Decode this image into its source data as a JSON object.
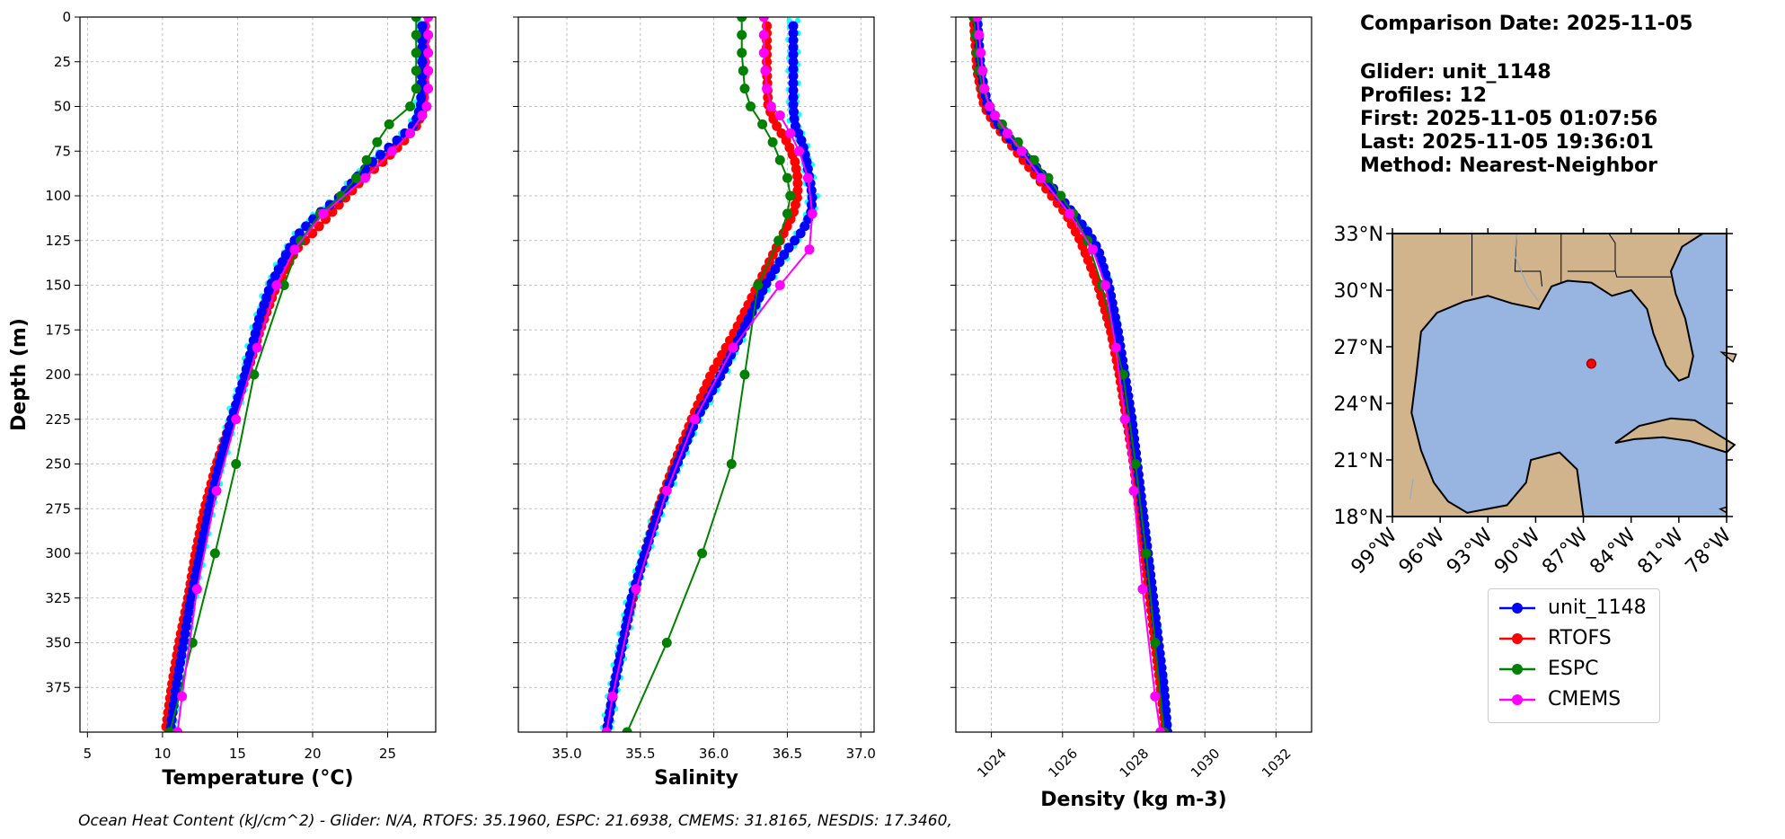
{
  "colors": {
    "unit_1148": "#0000ff",
    "unit_1148_points": "#00ffff",
    "RTOFS": "#ff0000",
    "ESPC": "#008000",
    "CMEMS": "#ff00ff",
    "land": "#d2b48c",
    "ocean": "#98b4e0",
    "grid": "#b0b0b0"
  },
  "info": {
    "comparison_date": "Comparison Date: 2025-11-05",
    "glider": "Glider: unit_1148",
    "profiles": "Profiles: 12",
    "first": "First: 2025-11-05 01:07:56",
    "last": "Last: 2025-11-05 19:36:01",
    "method": "Method: Nearest-Neighbor"
  },
  "legend": [
    {
      "name": "unit_1148",
      "color_key": "unit_1148"
    },
    {
      "name": "RTOFS",
      "color_key": "RTOFS"
    },
    {
      "name": "ESPC",
      "color_key": "ESPC"
    },
    {
      "name": "CMEMS",
      "color_key": "CMEMS"
    }
  ],
  "footer": "Ocean Heat Content (kJ/cm^2) - Glider: N/A,  RTOFS: 35.1960,  ESPC: 21.6938,  CMEMS: 31.8165,  NESDIS: 17.3460,",
  "map": {
    "lat_labels": [
      "33°N",
      "30°N",
      "27°N",
      "24°N",
      "21°N",
      "18°N"
    ],
    "lon_labels": [
      "99°W",
      "96°W",
      "93°W",
      "90°W",
      "87°W",
      "84°W",
      "81°W",
      "78°W"
    ],
    "lat_range": [
      18,
      33
    ],
    "lon_range": [
      -99,
      -78
    ],
    "glider_position": {
      "lon": -86.5,
      "lat": 26.1
    }
  },
  "chart_data": [
    {
      "type": "line",
      "title": "",
      "xlabel": "Temperature (°C)",
      "ylabel": "Depth (m)",
      "xlim": [
        4.5,
        28.2
      ],
      "ylim": [
        400,
        0
      ],
      "xticks": [
        5,
        10,
        15,
        20,
        25
      ],
      "yticks": [
        0,
        25,
        50,
        75,
        100,
        125,
        150,
        175,
        200,
        225,
        250,
        275,
        300,
        325,
        350,
        375
      ],
      "grid": true,
      "series": [
        {
          "name": "unit_1148",
          "depth": [
            5,
            30,
            50,
            60,
            70,
            80,
            90,
            100,
            110,
            120,
            130,
            140,
            150,
            170,
            190,
            200,
            225,
            250,
            275,
            300,
            325,
            350,
            375,
            400
          ],
          "values": [
            27.3,
            27.3,
            27.2,
            26.8,
            25.5,
            24.1,
            22.9,
            21.9,
            20.4,
            19.2,
            18.4,
            17.8,
            17.2,
            16.4,
            15.8,
            15.5,
            14.6,
            13.8,
            13.1,
            12.5,
            11.9,
            11.4,
            10.9,
            10.5
          ]
        },
        {
          "name": "RTOFS",
          "depth": [
            5,
            30,
            50,
            60,
            70,
            80,
            90,
            100,
            110,
            120,
            130,
            150,
            175,
            200,
            225,
            250,
            275,
            300,
            325,
            350,
            375,
            400
          ],
          "values": [
            27.5,
            27.5,
            27.4,
            27.0,
            26.0,
            24.8,
            23.4,
            22.3,
            21.2,
            20.1,
            18.9,
            17.6,
            16.5,
            15.6,
            14.6,
            13.6,
            12.8,
            12.2,
            11.7,
            11.1,
            10.6,
            10.2
          ]
        },
        {
          "name": "ESPC",
          "depth": [
            0,
            10,
            20,
            30,
            40,
            50,
            60,
            70,
            80,
            90,
            100,
            110,
            125,
            150,
            200,
            250,
            300,
            350,
            400
          ],
          "values": [
            26.9,
            26.9,
            26.9,
            26.9,
            26.9,
            26.5,
            25.1,
            24.3,
            23.6,
            22.9,
            21.9,
            20.5,
            19.2,
            18.1,
            16.1,
            14.9,
            13.5,
            12.0,
            10.5
          ]
        },
        {
          "name": "CMEMS",
          "depth": [
            0,
            10,
            20,
            30,
            40,
            50,
            55,
            65,
            75,
            90,
            110,
            130,
            150,
            185,
            225,
            265,
            320,
            380,
            400
          ],
          "values": [
            27.7,
            27.7,
            27.7,
            27.7,
            27.7,
            27.6,
            27.3,
            26.5,
            25.3,
            23.5,
            20.7,
            18.8,
            17.6,
            16.3,
            14.9,
            13.6,
            12.3,
            11.3,
            11.0
          ]
        }
      ]
    },
    {
      "type": "line",
      "title": "",
      "xlabel": "Salinity",
      "ylabel": "",
      "xlim": [
        34.67,
        37.09
      ],
      "ylim": [
        400,
        0
      ],
      "xticks": [
        35.0,
        35.5,
        36.0,
        36.5,
        37.0
      ],
      "grid": true,
      "series": [
        {
          "name": "unit_1148",
          "depth": [
            5,
            30,
            50,
            60,
            70,
            80,
            90,
            100,
            110,
            120,
            130,
            150,
            175,
            200,
            225,
            250,
            275,
            300,
            325,
            350,
            375,
            400
          ],
          "values": [
            36.54,
            36.54,
            36.54,
            36.55,
            36.6,
            36.63,
            36.65,
            36.67,
            36.66,
            36.6,
            36.5,
            36.35,
            36.2,
            36.05,
            35.88,
            35.75,
            35.63,
            35.53,
            35.44,
            35.38,
            35.32,
            35.27
          ]
        },
        {
          "name": "RTOFS",
          "depth": [
            5,
            30,
            50,
            60,
            70,
            80,
            90,
            100,
            110,
            125,
            150,
            175,
            200,
            225,
            250,
            275,
            300,
            325,
            350,
            375,
            400
          ],
          "values": [
            36.36,
            36.36,
            36.37,
            36.42,
            36.5,
            36.55,
            36.57,
            36.57,
            36.54,
            36.45,
            36.3,
            36.15,
            35.98,
            35.85,
            35.73,
            35.62,
            35.53,
            35.45,
            35.38,
            35.32,
            35.27
          ]
        },
        {
          "name": "ESPC",
          "depth": [
            0,
            10,
            20,
            30,
            40,
            50,
            60,
            70,
            80,
            90,
            100,
            110,
            125,
            150,
            200,
            250,
            300,
            350,
            400
          ],
          "values": [
            36.19,
            36.19,
            36.19,
            36.2,
            36.21,
            36.25,
            36.33,
            36.4,
            36.45,
            36.5,
            36.52,
            36.5,
            36.44,
            36.3,
            36.21,
            36.12,
            35.92,
            35.68,
            35.41
          ]
        },
        {
          "name": "CMEMS",
          "depth": [
            0,
            10,
            20,
            30,
            40,
            50,
            55,
            65,
            75,
            90,
            110,
            130,
            150,
            185,
            225,
            265,
            320,
            380,
            400
          ],
          "values": [
            36.34,
            36.34,
            36.34,
            36.35,
            36.36,
            36.39,
            36.45,
            36.52,
            36.58,
            36.64,
            36.67,
            36.65,
            36.45,
            36.13,
            35.87,
            35.68,
            35.47,
            35.31,
            35.27
          ]
        }
      ]
    },
    {
      "type": "line",
      "title": "",
      "xlabel": "Density (kg m-3)",
      "ylabel": "",
      "xlim": [
        1023.0,
        1033.0
      ],
      "ylim": [
        400,
        0
      ],
      "xticks": [
        1024,
        1026,
        1028,
        1030,
        1032
      ],
      "grid": true,
      "series": [
        {
          "name": "unit_1148",
          "depth": [
            0,
            30,
            50,
            60,
            70,
            80,
            90,
            100,
            110,
            120,
            130,
            150,
            175,
            200,
            225,
            250,
            275,
            300,
            325,
            350,
            375,
            400
          ],
          "values": [
            1023.6,
            1023.7,
            1023.9,
            1024.2,
            1024.6,
            1025.1,
            1025.5,
            1025.9,
            1026.3,
            1026.7,
            1027.0,
            1027.3,
            1027.55,
            1027.75,
            1027.95,
            1028.1,
            1028.25,
            1028.4,
            1028.55,
            1028.7,
            1028.85,
            1028.95
          ]
        },
        {
          "name": "RTOFS",
          "depth": [
            0,
            30,
            50,
            60,
            70,
            80,
            90,
            100,
            110,
            125,
            150,
            175,
            200,
            225,
            250,
            275,
            300,
            325,
            350,
            375,
            400
          ],
          "values": [
            1023.5,
            1023.6,
            1023.8,
            1024.1,
            1024.5,
            1024.9,
            1025.3,
            1025.7,
            1026.1,
            1026.5,
            1027.0,
            1027.35,
            1027.6,
            1027.8,
            1028.0,
            1028.15,
            1028.3,
            1028.45,
            1028.6,
            1028.75,
            1028.9
          ]
        },
        {
          "name": "ESPC",
          "depth": [
            0,
            10,
            20,
            30,
            40,
            50,
            60,
            70,
            80,
            90,
            100,
            110,
            125,
            150,
            200,
            250,
            300,
            350,
            400
          ],
          "values": [
            1023.5,
            1023.55,
            1023.6,
            1023.65,
            1023.75,
            1023.95,
            1024.3,
            1024.75,
            1025.2,
            1025.6,
            1025.95,
            1026.3,
            1026.7,
            1027.1,
            1027.7,
            1028.05,
            1028.35,
            1028.6,
            1028.85
          ]
        },
        {
          "name": "CMEMS",
          "depth": [
            0,
            10,
            20,
            30,
            40,
            50,
            55,
            65,
            75,
            90,
            110,
            130,
            150,
            185,
            225,
            265,
            320,
            380,
            400
          ],
          "values": [
            1023.6,
            1023.65,
            1023.7,
            1023.75,
            1023.8,
            1023.95,
            1024.1,
            1024.45,
            1024.85,
            1025.4,
            1026.2,
            1026.85,
            1027.2,
            1027.5,
            1027.75,
            1028.0,
            1028.25,
            1028.6,
            1028.75
          ]
        }
      ]
    }
  ]
}
